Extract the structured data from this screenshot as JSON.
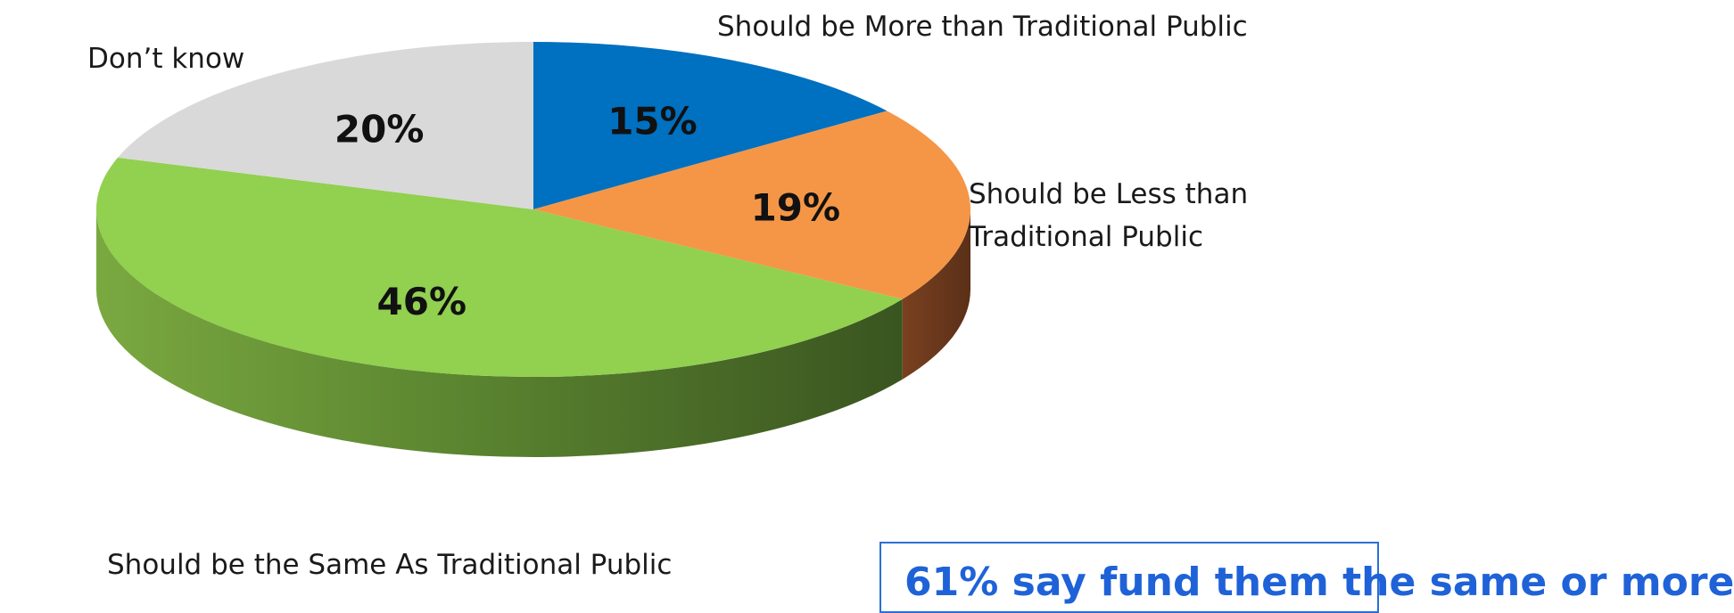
{
  "chart_data": {
    "type": "pie",
    "title": "",
    "slices": [
      {
        "label": "Should be More than Traditional Public",
        "value": 15,
        "display": "15%",
        "color": "#0070c0"
      },
      {
        "label": "Should be Less than Traditional Public",
        "value": 19,
        "display": "19%",
        "color": "#f59646"
      },
      {
        "label": "Should be the Same As Traditional Public",
        "value": 46,
        "display": "46%",
        "color": "#92d050"
      },
      {
        "label": "Don’t know",
        "value": 20,
        "display": "20%",
        "color": "#d9d9d9"
      }
    ],
    "legend": "none",
    "style": "3d"
  },
  "labels": {
    "more": "Should be More than Traditional Public",
    "less_line1": "Should be Less than",
    "less_line2": "Traditional Public",
    "same": "Should be the Same As Traditional Public",
    "dont_know": "Don’t know"
  },
  "callout": {
    "text": "61% say fund them the same or more"
  }
}
